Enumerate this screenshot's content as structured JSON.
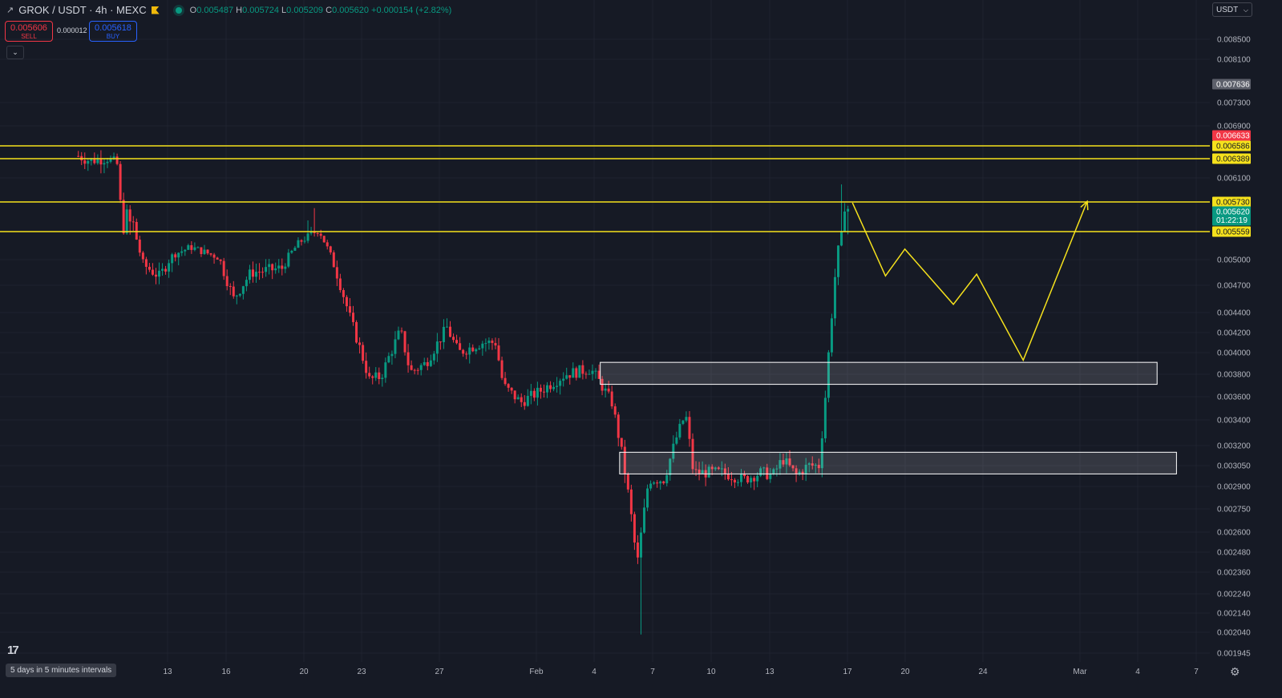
{
  "header": {
    "symbol": "GROK / USDT · 4h · MEXC",
    "o_label": "O",
    "o_value": "0.005487",
    "h_label": "H",
    "h_value": "0.005724",
    "l_label": "L",
    "l_value": "0.005209",
    "c_label": "C",
    "c_value": "0.005620",
    "change": "+0.000154 (+2.82%)"
  },
  "trade": {
    "sell_price": "0.005606",
    "sell_label": "SELL",
    "spread": "0.000012",
    "buy_price": "0.005618",
    "buy_label": "BUY"
  },
  "currency": "USDT",
  "interval_label": "5 days in 5 minutes intervals",
  "colors": {
    "bg": "#161a25",
    "up": "#089981",
    "down": "#f23645",
    "level": "#f5e11c",
    "grid": "#1f2330"
  },
  "chart_data": {
    "type": "candlestick",
    "y_ticks": [
      "0.008500",
      "0.008100",
      "0.007300",
      "0.006900",
      "0.006100",
      "0.005000",
      "0.004700",
      "0.004400",
      "0.004200",
      "0.004000",
      "0.003800",
      "0.003600",
      "0.003400",
      "0.003200",
      "0.003050",
      "0.002900",
      "0.002750",
      "0.002600",
      "0.002480",
      "0.002360",
      "0.002240",
      "0.002140",
      "0.002040",
      "0.001945"
    ],
    "x_ticks": [
      {
        "label": "13",
        "x": 209
      },
      {
        "label": "16",
        "x": 282
      },
      {
        "label": "20",
        "x": 379
      },
      {
        "label": "23",
        "x": 451
      },
      {
        "label": "27",
        "x": 548
      },
      {
        "label": "Feb",
        "x": 669
      },
      {
        "label": "4",
        "x": 741
      },
      {
        "label": "7",
        "x": 814
      },
      {
        "label": "10",
        "x": 887
      },
      {
        "label": "13",
        "x": 960
      },
      {
        "label": "17",
        "x": 1057
      },
      {
        "label": "20",
        "x": 1129
      },
      {
        "label": "24",
        "x": 1226
      },
      {
        "label": "Mar",
        "x": 1347
      },
      {
        "label": "4",
        "x": 1419
      },
      {
        "label": "7",
        "x": 1492
      }
    ],
    "price_tags": [
      {
        "value": "0.007636",
        "kind": "gray"
      },
      {
        "value": "0.006633",
        "kind": "red"
      },
      {
        "value": "0.006586",
        "kind": "level"
      },
      {
        "value": "0.006389",
        "kind": "level"
      },
      {
        "value": "0.005730",
        "kind": "level"
      },
      {
        "value": "0.005620",
        "kind": "current",
        "sub": "01:22:19"
      },
      {
        "value": "0.005559",
        "kind": "level"
      }
    ],
    "levels": [
      0.006586,
      0.006389,
      0.00573,
      0.005559
    ],
    "zones": [
      {
        "from_day": 22.3,
        "to_day": 51.0,
        "low": 0.00371,
        "high": 0.00391
      },
      {
        "from_day": 23.3,
        "to_day": 52.0,
        "low": 0.00299,
        "high": 0.00315
      }
    ],
    "projection": [
      {
        "day": 35.3,
        "price": 0.00572
      },
      {
        "day": 37.0,
        "price": 0.00481
      },
      {
        "day": 38.0,
        "price": 0.00521
      },
      {
        "day": 40.5,
        "price": 0.00449
      },
      {
        "day": 41.7,
        "price": 0.00483
      },
      {
        "day": 44.1,
        "price": 0.00393
      },
      {
        "day": 47.4,
        "price": 0.00574
      }
    ],
    "path": [
      {
        "day": -4.6,
        "price": 0.00643
      },
      {
        "day": -4.0,
        "price": 0.00636
      },
      {
        "day": -3.1,
        "price": 0.0064
      },
      {
        "day": -2.6,
        "price": 0.0063
      },
      {
        "day": -2.4,
        "price": 0.0056
      },
      {
        "day": -1.7,
        "price": 0.00556
      },
      {
        "day": -1.3,
        "price": 0.00495
      },
      {
        "day": -0.4,
        "price": 0.0048
      },
      {
        "day": 0.3,
        "price": 0.0051
      },
      {
        "day": 1.2,
        "price": 0.00525
      },
      {
        "day": 2.6,
        "price": 0.00505
      },
      {
        "day": 3.4,
        "price": 0.00455
      },
      {
        "day": 4.3,
        "price": 0.00485
      },
      {
        "day": 5.9,
        "price": 0.0049
      },
      {
        "day": 6.8,
        "price": 0.00535
      },
      {
        "day": 7.8,
        "price": 0.0056
      },
      {
        "day": 8.5,
        "price": 0.005
      },
      {
        "day": 9.4,
        "price": 0.00435
      },
      {
        "day": 10.4,
        "price": 0.00375
      },
      {
        "day": 11.0,
        "price": 0.00378
      },
      {
        "day": 12.0,
        "price": 0.00422
      },
      {
        "day": 12.5,
        "price": 0.00382
      },
      {
        "day": 13.3,
        "price": 0.0039
      },
      {
        "day": 14.4,
        "price": 0.00425
      },
      {
        "day": 15.0,
        "price": 0.004
      },
      {
        "day": 16.2,
        "price": 0.0041
      },
      {
        "day": 16.9,
        "price": 0.0041
      },
      {
        "day": 17.3,
        "price": 0.0037
      },
      {
        "day": 18.2,
        "price": 0.00355
      },
      {
        "day": 19.2,
        "price": 0.00365
      },
      {
        "day": 20.5,
        "price": 0.0038
      },
      {
        "day": 21.8,
        "price": 0.00385
      },
      {
        "day": 22.2,
        "price": 0.00375
      },
      {
        "day": 22.9,
        "price": 0.00355
      },
      {
        "day": 23.4,
        "price": 0.00315
      },
      {
        "day": 23.8,
        "price": 0.0028
      },
      {
        "day": 24.2,
        "price": 0.0024
      },
      {
        "day": 24.8,
        "price": 0.00295
      },
      {
        "day": 25.6,
        "price": 0.00295
      },
      {
        "day": 26.2,
        "price": 0.00325
      },
      {
        "day": 26.7,
        "price": 0.00345
      },
      {
        "day": 27.1,
        "price": 0.003
      },
      {
        "day": 27.9,
        "price": 0.003
      },
      {
        "day": 28.6,
        "price": 0.003
      },
      {
        "day": 29.7,
        "price": 0.00295
      },
      {
        "day": 30.6,
        "price": 0.003
      },
      {
        "day": 31.2,
        "price": 0.00298
      },
      {
        "day": 31.7,
        "price": 0.0031
      },
      {
        "day": 32.4,
        "price": 0.00298
      },
      {
        "day": 33.0,
        "price": 0.00305
      },
      {
        "day": 33.6,
        "price": 0.00305
      },
      {
        "day": 33.9,
        "price": 0.0036
      },
      {
        "day": 34.2,
        "price": 0.0043
      },
      {
        "day": 34.6,
        "price": 0.0053
      },
      {
        "day": 34.9,
        "price": 0.0057
      },
      {
        "day": 35.2,
        "price": 0.00562
      }
    ]
  }
}
